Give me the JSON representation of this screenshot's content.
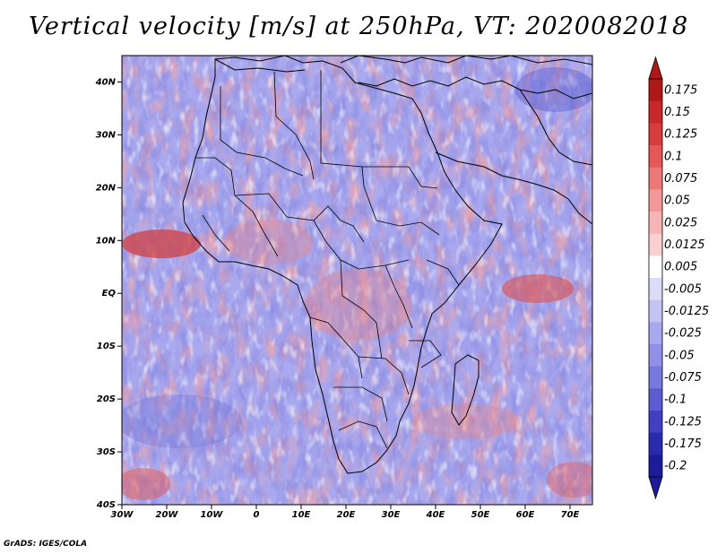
{
  "title": "Vertical velocity [m/s] at 250hPa, VT: 2020082018",
  "footer": "GrADS: IGES/COLA",
  "map": {
    "lon_range": [
      -30,
      75
    ],
    "lat_range": [
      -40,
      45
    ],
    "lon_ticks": [
      "30W",
      "20W",
      "10W",
      "0",
      "10E",
      "20E",
      "30E",
      "40E",
      "50E",
      "60E",
      "70E"
    ],
    "lat_ticks": [
      "40N",
      "30N",
      "20N",
      "10N",
      "EQ",
      "10S",
      "20S",
      "30S",
      "40S"
    ]
  },
  "colorbar": {
    "labels": [
      "0.175",
      "0.15",
      "0.125",
      "0.1",
      "0.075",
      "0.05",
      "0.025",
      "0.0125",
      "0.005",
      "-0.005",
      "-0.0125",
      "-0.025",
      "-0.05",
      "-0.075",
      "-0.1",
      "-0.125",
      "-0.175",
      "-0.2"
    ],
    "colors": [
      "#b01818",
      "#c82828",
      "#d83c3c",
      "#e45858",
      "#ec7878",
      "#f29898",
      "#f6b4b4",
      "#fad0d0",
      "#ffffff",
      "#dcdcf8",
      "#c4c4f4",
      "#a8a8ee",
      "#9090e6",
      "#7878dc",
      "#5c5cd0",
      "#4040c0",
      "#2a2aae",
      "#1c1c9a"
    ],
    "max_color": "#b01818",
    "min_color": "#1c1c9a"
  }
}
